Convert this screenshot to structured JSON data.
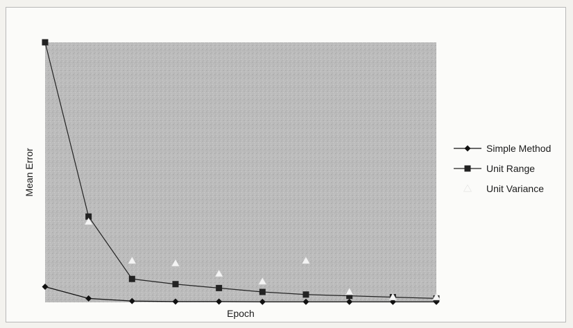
{
  "chart_data": {
    "type": "line",
    "title": "",
    "xlabel": "Epoch",
    "ylabel": "Mean Error",
    "x": [
      1,
      2,
      3,
      4,
      5,
      6,
      7,
      8,
      9,
      10
    ],
    "xlim": [
      1,
      10
    ],
    "ylim": [
      0,
      100
    ],
    "grid": false,
    "legend_position": "right",
    "background_color": "#bdbdbd",
    "series": [
      {
        "name": "Simple Method",
        "marker": "diamond",
        "line": true,
        "color": "#111111",
        "values": [
          6,
          1.5,
          0.5,
          0.3,
          0.3,
          0.2,
          0.2,
          0.2,
          0.2,
          0.2
        ]
      },
      {
        "name": "Unit Range",
        "marker": "square",
        "line": true,
        "color": "#222222",
        "values": [
          100,
          33,
          9,
          7,
          5.5,
          4,
          3,
          2.5,
          2,
          1.5
        ]
      },
      {
        "name": "Unit Variance",
        "marker": "triangle",
        "line": false,
        "color": "#f4f4f4",
        "values": [
          null,
          31,
          16,
          15,
          11,
          8,
          16,
          4,
          2,
          2
        ]
      }
    ]
  }
}
